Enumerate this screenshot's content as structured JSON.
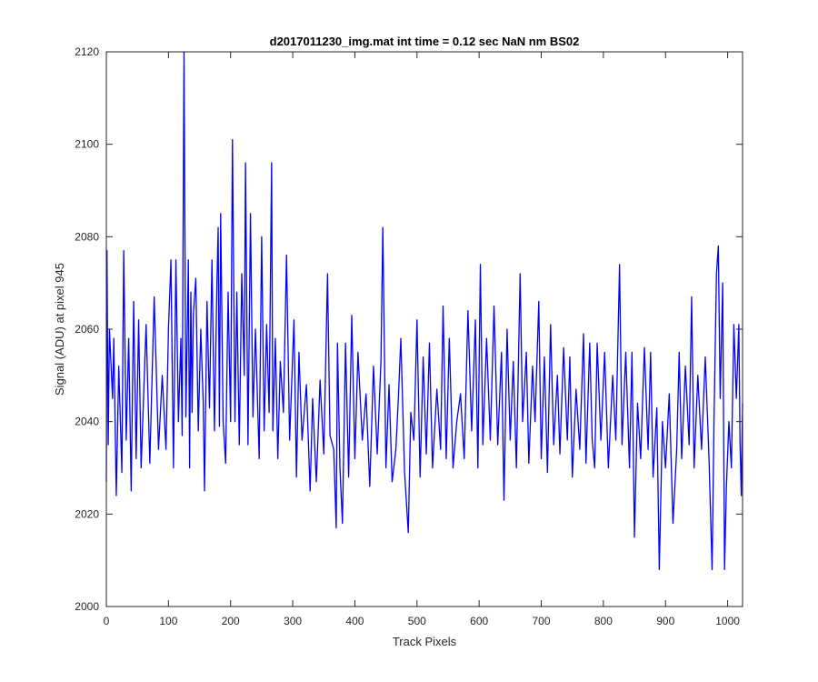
{
  "chart_data": {
    "type": "line",
    "title": "d2017011230_img.mat int time = 0.12 sec  NaN nm BS02",
    "xlabel": "Track Pixels",
    "ylabel": "Signal (ADU) at pixel 945",
    "xlim": [
      0,
      1024
    ],
    "ylim": [
      2000,
      2120
    ],
    "xticks": [
      0,
      100,
      200,
      300,
      400,
      500,
      600,
      700,
      800,
      900,
      1000
    ],
    "yticks": [
      2000,
      2020,
      2040,
      2060,
      2080,
      2100,
      2120
    ],
    "grid": false,
    "legend": "none",
    "line_color": "#0000ff",
    "series": [
      {
        "keypoints": [
          [
            0,
            2027
          ],
          [
            1,
            2077
          ],
          [
            3,
            2035
          ],
          [
            5,
            2060
          ],
          [
            10,
            2045
          ],
          [
            12,
            2058
          ],
          [
            16,
            2024
          ],
          [
            20,
            2052
          ],
          [
            25,
            2029
          ],
          [
            28,
            2077
          ],
          [
            32,
            2036
          ],
          [
            36,
            2058
          ],
          [
            40,
            2025
          ],
          [
            44,
            2066
          ],
          [
            48,
            2032
          ],
          [
            52,
            2062
          ],
          [
            56,
            2030
          ],
          [
            64,
            2061
          ],
          [
            70,
            2031
          ],
          [
            77,
            2067
          ],
          [
            84,
            2034
          ],
          [
            90,
            2050
          ],
          [
            96,
            2034
          ],
          [
            100,
            2060
          ],
          [
            104,
            2075
          ],
          [
            108,
            2030
          ],
          [
            112,
            2075
          ],
          [
            116,
            2040
          ],
          [
            120,
            2058
          ],
          [
            122,
            2037
          ],
          [
            125,
            2120
          ],
          [
            128,
            2041
          ],
          [
            132,
            2075
          ],
          [
            134,
            2030
          ],
          [
            136,
            2068
          ],
          [
            138,
            2042
          ],
          [
            140,
            2063
          ],
          [
            144,
            2071
          ],
          [
            148,
            2038
          ],
          [
            152,
            2060
          ],
          [
            156,
            2044
          ],
          [
            158,
            2025
          ],
          [
            162,
            2066
          ],
          [
            166,
            2043
          ],
          [
            170,
            2075
          ],
          [
            174,
            2038
          ],
          [
            178,
            2070
          ],
          [
            180,
            2082
          ],
          [
            182,
            2039
          ],
          [
            184,
            2085
          ],
          [
            188,
            2040
          ],
          [
            192,
            2031
          ],
          [
            196,
            2068
          ],
          [
            200,
            2040
          ],
          [
            203,
            2101
          ],
          [
            207,
            2040
          ],
          [
            210,
            2068
          ],
          [
            214,
            2035
          ],
          [
            218,
            2072
          ],
          [
            222,
            2050
          ],
          [
            224,
            2096
          ],
          [
            228,
            2035
          ],
          [
            232,
            2085
          ],
          [
            236,
            2041
          ],
          [
            240,
            2060
          ],
          [
            246,
            2032
          ],
          [
            250,
            2080
          ],
          [
            254,
            2038
          ],
          [
            258,
            2061
          ],
          [
            262,
            2042
          ],
          [
            264,
            2069
          ],
          [
            266,
            2096
          ],
          [
            268,
            2038
          ],
          [
            272,
            2058
          ],
          [
            276,
            2032
          ],
          [
            280,
            2053
          ],
          [
            285,
            2042
          ],
          [
            290,
            2076
          ],
          [
            295,
            2036
          ],
          [
            302,
            2062
          ],
          [
            306,
            2028
          ],
          [
            310,
            2055
          ],
          [
            315,
            2036
          ],
          [
            322,
            2048
          ],
          [
            328,
            2025
          ],
          [
            332,
            2045
          ],
          [
            338,
            2027
          ],
          [
            344,
            2049
          ],
          [
            350,
            2033
          ],
          [
            356,
            2072
          ],
          [
            360,
            2037
          ],
          [
            366,
            2034
          ],
          [
            370,
            2017
          ],
          [
            372,
            2057
          ],
          [
            376,
            2030
          ],
          [
            380,
            2018
          ],
          [
            385,
            2057
          ],
          [
            390,
            2028
          ],
          [
            395,
            2063
          ],
          [
            400,
            2032
          ],
          [
            405,
            2055
          ],
          [
            412,
            2036
          ],
          [
            418,
            2046
          ],
          [
            424,
            2026
          ],
          [
            430,
            2052
          ],
          [
            436,
            2033
          ],
          [
            442,
            2053
          ],
          [
            445,
            2082
          ],
          [
            450,
            2030
          ],
          [
            455,
            2048
          ],
          [
            460,
            2027
          ],
          [
            466,
            2034
          ],
          [
            470,
            2045
          ],
          [
            474,
            2058
          ],
          [
            480,
            2029
          ],
          [
            486,
            2016
          ],
          [
            490,
            2042
          ],
          [
            495,
            2036
          ],
          [
            500,
            2062
          ],
          [
            505,
            2028
          ],
          [
            510,
            2054
          ],
          [
            515,
            2033
          ],
          [
            520,
            2057
          ],
          [
            525,
            2030
          ],
          [
            532,
            2047
          ],
          [
            538,
            2034
          ],
          [
            542,
            2065
          ],
          [
            547,
            2032
          ],
          [
            552,
            2058
          ],
          [
            558,
            2030
          ],
          [
            564,
            2040
          ],
          [
            570,
            2046
          ],
          [
            576,
            2032
          ],
          [
            582,
            2064
          ],
          [
            588,
            2038
          ],
          [
            594,
            2062
          ],
          [
            598,
            2030
          ],
          [
            602,
            2074
          ],
          [
            606,
            2035
          ],
          [
            612,
            2058
          ],
          [
            618,
            2036
          ],
          [
            624,
            2065
          ],
          [
            630,
            2035
          ],
          [
            636,
            2055
          ],
          [
            640,
            2023
          ],
          [
            645,
            2060
          ],
          [
            650,
            2036
          ],
          [
            655,
            2053
          ],
          [
            660,
            2030
          ],
          [
            666,
            2072
          ],
          [
            670,
            2040
          ],
          [
            676,
            2055
          ],
          [
            680,
            2031
          ],
          [
            686,
            2052
          ],
          [
            690,
            2040
          ],
          [
            696,
            2066
          ],
          [
            700,
            2032
          ],
          [
            705,
            2054
          ],
          [
            710,
            2029
          ],
          [
            715,
            2061
          ],
          [
            720,
            2035
          ],
          [
            726,
            2050
          ],
          [
            730,
            2033
          ],
          [
            736,
            2056
          ],
          [
            742,
            2036
          ],
          [
            746,
            2054
          ],
          [
            750,
            2028
          ],
          [
            756,
            2047
          ],
          [
            762,
            2034
          ],
          [
            768,
            2059
          ],
          [
            772,
            2031
          ],
          [
            778,
            2057
          ],
          [
            782,
            2036
          ],
          [
            786,
            2030
          ],
          [
            790,
            2057
          ],
          [
            796,
            2036
          ],
          [
            802,
            2055
          ],
          [
            808,
            2030
          ],
          [
            815,
            2050
          ],
          [
            820,
            2036
          ],
          [
            826,
            2074
          ],
          [
            830,
            2035
          ],
          [
            836,
            2055
          ],
          [
            842,
            2030
          ],
          [
            846,
            2055
          ],
          [
            850,
            2015
          ],
          [
            855,
            2044
          ],
          [
            860,
            2032
          ],
          [
            866,
            2056
          ],
          [
            872,
            2034
          ],
          [
            876,
            2055
          ],
          [
            880,
            2028
          ],
          [
            886,
            2043
          ],
          [
            890,
            2008
          ],
          [
            895,
            2040
          ],
          [
            900,
            2030
          ],
          [
            906,
            2046
          ],
          [
            912,
            2018
          ],
          [
            918,
            2034
          ],
          [
            922,
            2055
          ],
          [
            926,
            2032
          ],
          [
            932,
            2052
          ],
          [
            938,
            2035
          ],
          [
            942,
            2067
          ],
          [
            946,
            2030
          ],
          [
            952,
            2050
          ],
          [
            958,
            2034
          ],
          [
            964,
            2054
          ],
          [
            970,
            2032
          ],
          [
            975,
            2008
          ],
          [
            978,
            2040
          ],
          [
            982,
            2072
          ],
          [
            985,
            2078
          ],
          [
            988,
            2045
          ],
          [
            992,
            2070
          ],
          [
            995,
            2008
          ],
          [
            998,
            2026
          ],
          [
            1002,
            2040
          ],
          [
            1006,
            2030
          ],
          [
            1010,
            2061
          ],
          [
            1014,
            2045
          ],
          [
            1018,
            2061
          ],
          [
            1020,
            2035
          ],
          [
            1022,
            2024
          ],
          [
            1024,
            2044
          ]
        ]
      }
    ]
  }
}
